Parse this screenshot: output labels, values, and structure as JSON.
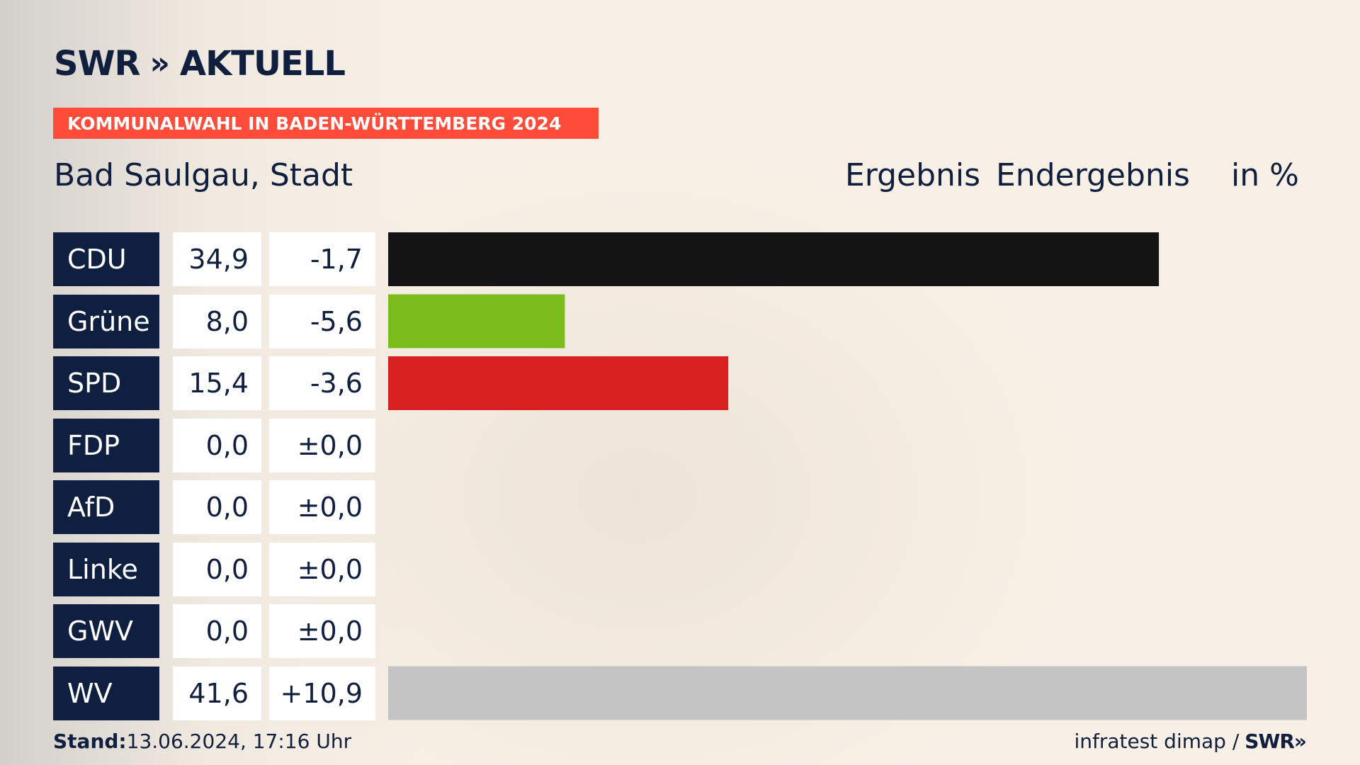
{
  "brand": {
    "logo_text": "SWR",
    "logo_chevrons": "»",
    "logo_suffix": "AKTUELL"
  },
  "banner": {
    "text": "KOMMUNALWAHL IN BADEN-WÜRTTEMBERG 2024",
    "color": "#ff4b3a"
  },
  "location": "Bad Saulgau, Stadt",
  "headers": {
    "result": "Ergebnis",
    "final": "Endergebnis",
    "unit": "in %"
  },
  "chart_data": {
    "type": "bar",
    "categories": [
      "CDU",
      "Grüne",
      "SPD",
      "FDP",
      "AfD",
      "Linke",
      "GWV",
      "WV"
    ],
    "values": [
      34.9,
      8.0,
      15.4,
      0.0,
      0.0,
      0.0,
      0.0,
      41.6
    ],
    "value_labels": [
      "34,9",
      "8,0",
      "15,4",
      "0,0",
      "0,0",
      "0,0",
      "0,0",
      "41,6"
    ],
    "diff_labels": [
      "-1,7",
      "-5,6",
      "-3,6",
      "±0,0",
      "±0,0",
      "±0,0",
      "±0,0",
      "+10,9"
    ],
    "colors": [
      "#141414",
      "#79bc1c",
      "#d7201f",
      "#f5d800",
      "#1aa0e0",
      "#b61e5b",
      "#888888",
      "#c4c4c4"
    ],
    "xlim": [
      0,
      41.6
    ]
  },
  "footer": {
    "stand_label": "Stand:",
    "stand_value": "13.06.2024, 17:16 Uhr",
    "source": "infratest dimap /",
    "source_brand": "SWR",
    "source_chevrons": "»"
  }
}
